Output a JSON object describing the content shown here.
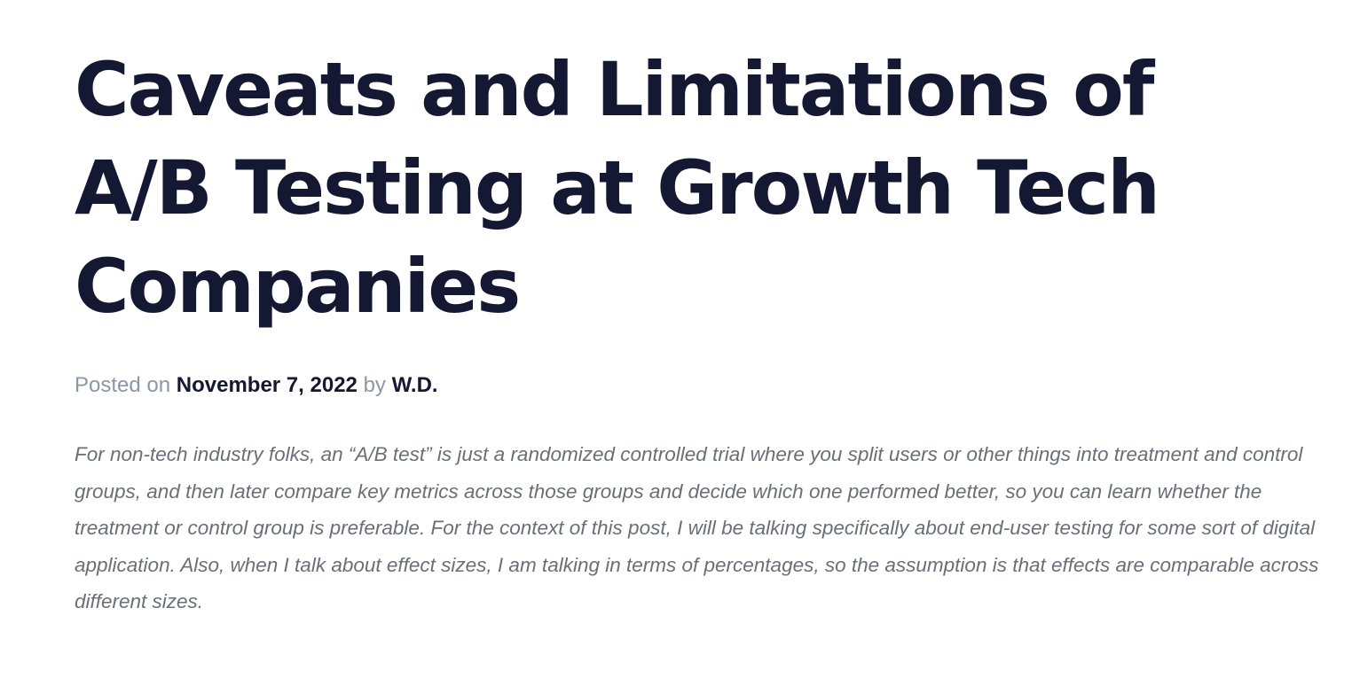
{
  "post": {
    "title": "Caveats and Limitations of A/B Testing at Growth Tech Companies",
    "meta": {
      "posted_on_label": "Posted on",
      "date": "November 7, 2022",
      "by_label": "by",
      "author": "W.D."
    },
    "intro": "For non-tech industry folks, an “A/B test” is just a randomized controlled trial where you split users or other things into treatment and control groups, and then later compare key metrics across those groups and decide which one performed better, so you can learn whether the treatment or control group is preferable. For the context of this post, I will be talking specifically about end-user testing for some sort of digital application. Also, when I talk about effect sizes, I am talking in terms of percentages, so the assumption is that effects are comparable across different sizes."
  },
  "colors": {
    "title": "#151833",
    "meta_muted": "#8a97a6",
    "body_text": "#6b6e78",
    "background": "#ffffff"
  }
}
